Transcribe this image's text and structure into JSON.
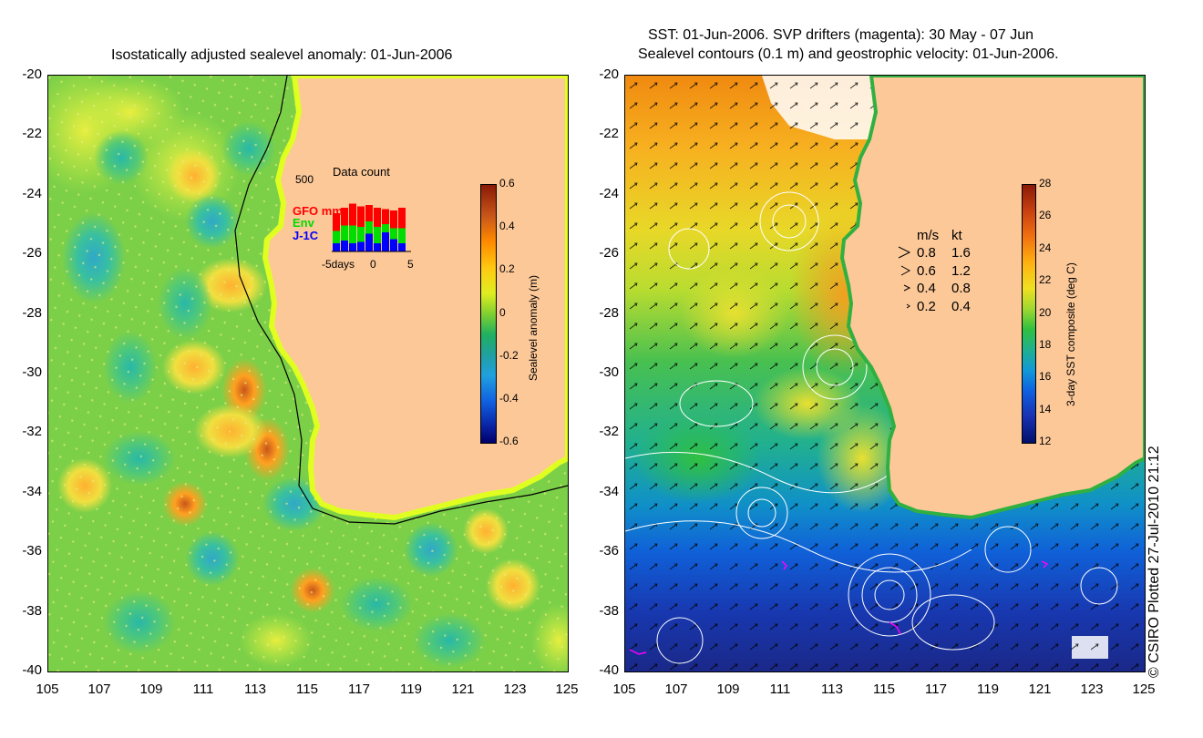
{
  "left_panel": {
    "title": "Isostatically adjusted sealevel anomaly: 01-Jun-2006",
    "colorbar_label": "Sealevel anomaly (m)",
    "colorbar_ticks": [
      "0.6",
      "0.4",
      "0.2",
      "0",
      "-0.2",
      "-0.4",
      "-0.6"
    ],
    "inset": {
      "title": "Data count",
      "ymax_label": "500",
      "legend": [
        {
          "label": "GFO mm",
          "color": "#ff0000"
        },
        {
          "label": "Env",
          "color": "#00dd00"
        },
        {
          "label": "J-1C",
          "color": "#0000ff"
        }
      ],
      "x_labels": [
        "-5days",
        "0",
        "5"
      ],
      "bars": [
        {
          "j1c": 60,
          "env": 90,
          "gfo": 130
        },
        {
          "j1c": 80,
          "env": 110,
          "gfo": 130
        },
        {
          "j1c": 60,
          "env": 130,
          "gfo": 160
        },
        {
          "j1c": 70,
          "env": 110,
          "gfo": 150
        },
        {
          "j1c": 130,
          "env": 90,
          "gfo": 120
        },
        {
          "j1c": 60,
          "env": 120,
          "gfo": 140
        },
        {
          "j1c": 140,
          "env": 60,
          "gfo": 110
        },
        {
          "j1c": 90,
          "env": 80,
          "gfo": 130
        },
        {
          "j1c": 60,
          "env": 110,
          "gfo": 150
        }
      ]
    }
  },
  "right_panel": {
    "title_line1": "SST: 01-Jun-2006. SVP drifters (magenta): 30 May - 07 Jun",
    "title_line2": "Sealevel contours (0.1 m) and geostrophic velocity: 01-Jun-2006.",
    "colorbar_label": "3-day SST composite (deg C)",
    "colorbar_ticks": [
      "28",
      "26",
      "24",
      "22",
      "20",
      "18",
      "16",
      "14",
      "12"
    ],
    "velocity_legend": {
      "header_ms": "m/s",
      "header_kt": "kt",
      "rows": [
        {
          "ms": "0.8",
          "kt": "1.6"
        },
        {
          "ms": "0.6",
          "kt": "1.2"
        },
        {
          "ms": "0.4",
          "kt": "0.8"
        },
        {
          "ms": "0.2",
          "kt": "0.4"
        }
      ]
    }
  },
  "axes": {
    "y_ticks": [
      "-20",
      "-22",
      "-24",
      "-26",
      "-28",
      "-30",
      "-32",
      "-34",
      "-36",
      "-38",
      "-40"
    ],
    "x_ticks": [
      "105",
      "107",
      "109",
      "111",
      "113",
      "115",
      "117",
      "119",
      "121",
      "123",
      "125"
    ]
  },
  "credit": "© CSIRO Plotted 27-Jul-2010 21:12"
}
